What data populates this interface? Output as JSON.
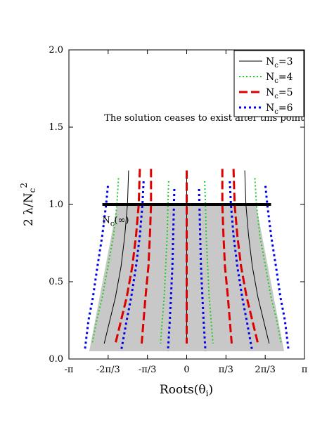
{
  "chart_data": {
    "type": "line",
    "title": "",
    "xlabel": "Roots(θ",
    "xlabel_sub": "i",
    "xlabel_close": ")",
    "ylabel": "2 λ/N",
    "ylabel_sub": "c",
    "ylabel_sup": "2",
    "xlim": [
      -3.14159,
      3.14159
    ],
    "ylim": [
      0.0,
      2.0
    ],
    "x_ticks": [
      {
        "value": -3.14159,
        "label": "-π"
      },
      {
        "value": -2.0944,
        "label": "-2π/3"
      },
      {
        "value": -1.0472,
        "label": "-π/3"
      },
      {
        "value": 0,
        "label": "0"
      },
      {
        "value": 1.0472,
        "label": "π/3"
      },
      {
        "value": 2.0944,
        "label": "2π/3"
      },
      {
        "value": 3.14159,
        "label": "π"
      }
    ],
    "y_ticks": [
      {
        "value": 0.0,
        "label": "0.0"
      },
      {
        "value": 0.5,
        "label": "0.5"
      },
      {
        "value": 1.0,
        "label": "1.0"
      },
      {
        "value": 1.5,
        "label": "1.5"
      },
      {
        "value": 2.0,
        "label": "2.0"
      }
    ],
    "grid": false,
    "legend_position": "top-right",
    "shaded_region": {
      "color": "#c8c8c8",
      "top_y": 1.0,
      "bottom_y": 0.05,
      "top_x_range": [
        -1.85,
        1.85
      ],
      "bottom_x_range": [
        -2.6,
        2.6
      ]
    },
    "horizontal_line": {
      "y": 1.0,
      "x_range": [
        -2.25,
        2.25
      ],
      "color": "#000000"
    },
    "series": [
      {
        "name": "N",
        "name_sub": "c",
        "name_suffix": "=3",
        "color": "#000000",
        "style": "solid",
        "width": 1,
        "curves": [
          [
            [
              -1.55,
              1.22
            ],
            [
              -1.58,
              1.0
            ],
            [
              -1.65,
              0.8
            ],
            [
              -1.75,
              0.6
            ],
            [
              -1.9,
              0.4
            ],
            [
              -2.05,
              0.25
            ],
            [
              -2.2,
              0.1
            ]
          ],
          [
            [
              0.0,
              1.22
            ],
            [
              0.0,
              0.1
            ]
          ],
          [
            [
              1.55,
              1.22
            ],
            [
              1.58,
              1.0
            ],
            [
              1.65,
              0.8
            ],
            [
              1.75,
              0.6
            ],
            [
              1.9,
              0.4
            ],
            [
              2.05,
              0.25
            ],
            [
              2.2,
              0.1
            ]
          ]
        ]
      },
      {
        "name": "N",
        "name_sub": "c",
        "name_suffix": "=4",
        "color": "#22cc22",
        "style": "dotted",
        "width": 2,
        "curves": [
          [
            [
              -1.82,
              1.17
            ],
            [
              -1.86,
              1.0
            ],
            [
              -1.95,
              0.8
            ],
            [
              -2.1,
              0.6
            ],
            [
              -2.25,
              0.4
            ],
            [
              -2.4,
              0.25
            ],
            [
              -2.52,
              0.1
            ]
          ],
          [
            [
              -0.48,
              1.15
            ],
            [
              -0.5,
              1.0
            ],
            [
              -0.52,
              0.8
            ],
            [
              -0.56,
              0.6
            ],
            [
              -0.6,
              0.4
            ],
            [
              -0.65,
              0.25
            ],
            [
              -0.7,
              0.1
            ]
          ],
          [
            [
              0.48,
              1.15
            ],
            [
              0.5,
              1.0
            ],
            [
              0.52,
              0.8
            ],
            [
              0.56,
              0.6
            ],
            [
              0.6,
              0.4
            ],
            [
              0.65,
              0.25
            ],
            [
              0.7,
              0.1
            ]
          ],
          [
            [
              1.82,
              1.17
            ],
            [
              1.86,
              1.0
            ],
            [
              1.95,
              0.8
            ],
            [
              2.1,
              0.6
            ],
            [
              2.25,
              0.4
            ],
            [
              2.4,
              0.25
            ],
            [
              2.52,
              0.1
            ]
          ]
        ]
      },
      {
        "name": "N",
        "name_sub": "c",
        "name_suffix": "=5",
        "color": "#dd0000",
        "style": "dashed",
        "width": 3,
        "curves": [
          [
            [
              -1.25,
              1.23
            ],
            [
              -1.28,
              1.0
            ],
            [
              -1.35,
              0.8
            ],
            [
              -1.45,
              0.6
            ],
            [
              -1.6,
              0.4
            ],
            [
              -1.75,
              0.25
            ],
            [
              -1.9,
              0.1
            ]
          ],
          [
            [
              -0.95,
              1.23
            ],
            [
              -0.95,
              1.0
            ],
            [
              -0.98,
              0.8
            ],
            [
              -1.02,
              0.6
            ],
            [
              -1.1,
              0.4
            ],
            [
              -1.15,
              0.25
            ],
            [
              -1.2,
              0.1
            ]
          ],
          [
            [
              0.0,
              1.22
            ],
            [
              0.0,
              0.1
            ]
          ],
          [
            [
              0.95,
              1.23
            ],
            [
              0.95,
              1.0
            ],
            [
              0.98,
              0.8
            ],
            [
              1.02,
              0.6
            ],
            [
              1.1,
              0.4
            ],
            [
              1.15,
              0.25
            ],
            [
              1.2,
              0.1
            ]
          ],
          [
            [
              1.25,
              1.23
            ],
            [
              1.28,
              1.0
            ],
            [
              1.35,
              0.8
            ],
            [
              1.45,
              0.6
            ],
            [
              1.6,
              0.4
            ],
            [
              1.75,
              0.25
            ],
            [
              1.9,
              0.1
            ]
          ]
        ]
      },
      {
        "name": "N",
        "name_sub": "c",
        "name_suffix": "=6",
        "color": "#0000ee",
        "style": "dotted",
        "width": 3,
        "curves": [
          [
            [
              -2.1,
              1.12
            ],
            [
              -2.15,
              1.0
            ],
            [
              -2.25,
              0.8
            ],
            [
              -2.38,
              0.6
            ],
            [
              -2.5,
              0.4
            ],
            [
              -2.62,
              0.25
            ],
            [
              -2.72,
              0.05
            ]
          ],
          [
            [
              -1.15,
              1.15
            ],
            [
              -1.18,
              1.0
            ],
            [
              -1.25,
              0.8
            ],
            [
              -1.35,
              0.6
            ],
            [
              -1.48,
              0.4
            ],
            [
              -1.6,
              0.25
            ],
            [
              -1.75,
              0.05
            ]
          ],
          [
            [
              -0.33,
              1.1
            ],
            [
              -0.34,
              1.0
            ],
            [
              -0.36,
              0.8
            ],
            [
              -0.38,
              0.6
            ],
            [
              -0.42,
              0.4
            ],
            [
              -0.45,
              0.25
            ],
            [
              -0.5,
              0.05
            ]
          ],
          [
            [
              0.33,
              1.1
            ],
            [
              0.34,
              1.0
            ],
            [
              0.36,
              0.8
            ],
            [
              0.38,
              0.6
            ],
            [
              0.42,
              0.4
            ],
            [
              0.45,
              0.25
            ],
            [
              0.5,
              0.05
            ]
          ],
          [
            [
              1.15,
              1.15
            ],
            [
              1.18,
              1.0
            ],
            [
              1.25,
              0.8
            ],
            [
              1.35,
              0.6
            ],
            [
              1.48,
              0.4
            ],
            [
              1.6,
              0.25
            ],
            [
              1.75,
              0.05
            ]
          ],
          [
            [
              2.1,
              1.12
            ],
            [
              2.15,
              1.0
            ],
            [
              2.25,
              0.8
            ],
            [
              2.38,
              0.6
            ],
            [
              2.5,
              0.4
            ],
            [
              2.62,
              0.25
            ],
            [
              2.72,
              0.05
            ]
          ]
        ]
      }
    ],
    "annotations": [
      {
        "text": "The solution ceases to exist after this point",
        "x": -2.2,
        "y": 1.54
      },
      {
        "text": "N",
        "sub": "c",
        "suffix": "(∞)",
        "x": -2.25,
        "y": 0.88
      }
    ]
  }
}
